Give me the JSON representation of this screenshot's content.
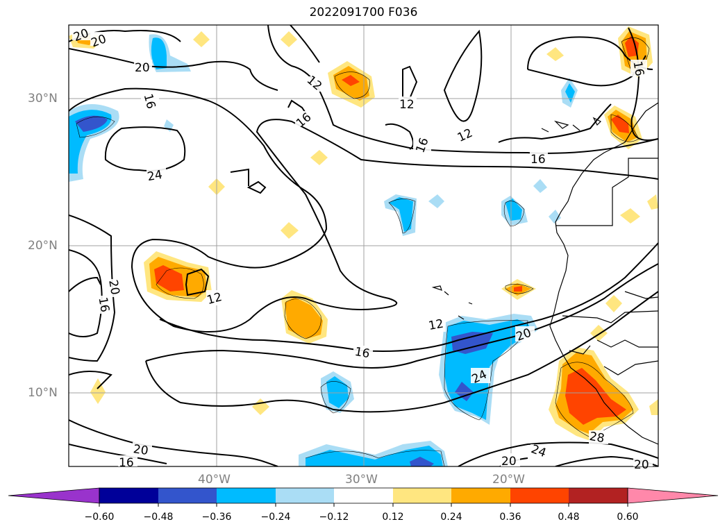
{
  "title": "2022091700 F036",
  "lat_labels": [
    "30°N",
    "20°N",
    "10°N"
  ],
  "lon_labels": [
    "40°W",
    "30°W",
    "20°W"
  ],
  "colorbar": {
    "ticks": [
      "−0.60",
      "−0.48",
      "−0.36",
      "−0.24",
      "−0.12",
      "0.12",
      "0.24",
      "0.36",
      "0.48",
      "0.60"
    ],
    "colors": [
      "#9933cc",
      "#000099",
      "#3355cc",
      "#00bbff",
      "#aaddf5",
      "#ffffff",
      "#ffe680",
      "#ffaa00",
      "#ff4400",
      "#b22222",
      "#ff88aa"
    ]
  },
  "contour_labels": [
    "20",
    "20",
    "20",
    "16",
    "12",
    "16",
    "12",
    "16",
    "12",
    "16",
    "24",
    "16",
    "12",
    "20",
    "16",
    "12",
    "16",
    "12",
    "20",
    "24",
    "16",
    "20",
    "20",
    "24",
    "28",
    "20"
  ]
}
